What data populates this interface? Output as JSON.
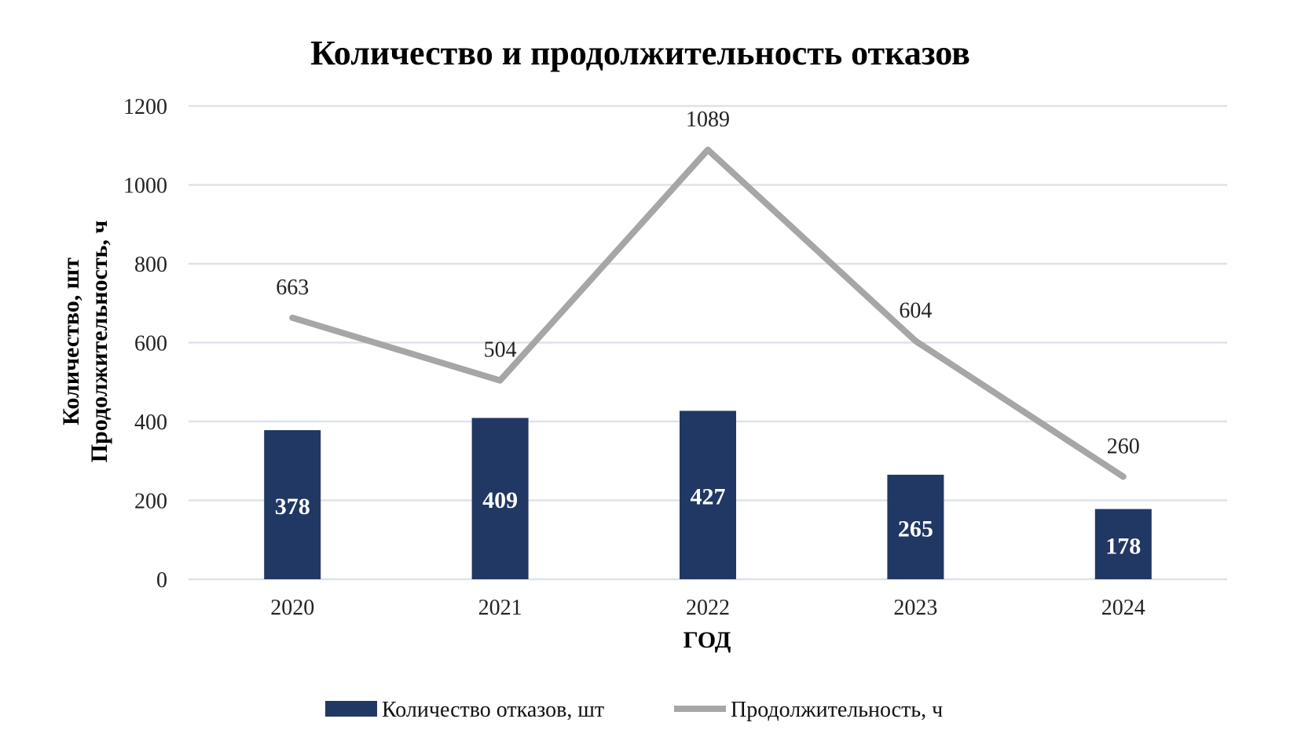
{
  "chart_data": {
    "type": "bar",
    "title": "Количество и продолжительность отказов",
    "xlabel": "ГОД",
    "ylabel_line1": "Количество, шт",
    "ylabel_line2": "Продолжительность, ч",
    "categories": [
      "2020",
      "2021",
      "2022",
      "2023",
      "2024"
    ],
    "ylim": [
      0,
      1200
    ],
    "yticks": [
      "0",
      "200",
      "400",
      "600",
      "800",
      "1000",
      "1200"
    ],
    "ytick_values": [
      0,
      200,
      400,
      600,
      800,
      1000,
      1200
    ],
    "grid": true,
    "legend_position": "bottom",
    "series": [
      {
        "name": "Количество отказов, шт",
        "type": "bar",
        "color": "#213764",
        "values": [
          378,
          409,
          427,
          265,
          178
        ],
        "labels": [
          "378",
          "409",
          "427",
          "265",
          "178"
        ]
      },
      {
        "name": "Продолжительность, ч",
        "type": "line",
        "color": "#a6a6a6",
        "values": [
          663,
          504,
          1089,
          604,
          260
        ],
        "labels": [
          "663",
          "504",
          "1089",
          "604",
          "260"
        ]
      }
    ]
  }
}
